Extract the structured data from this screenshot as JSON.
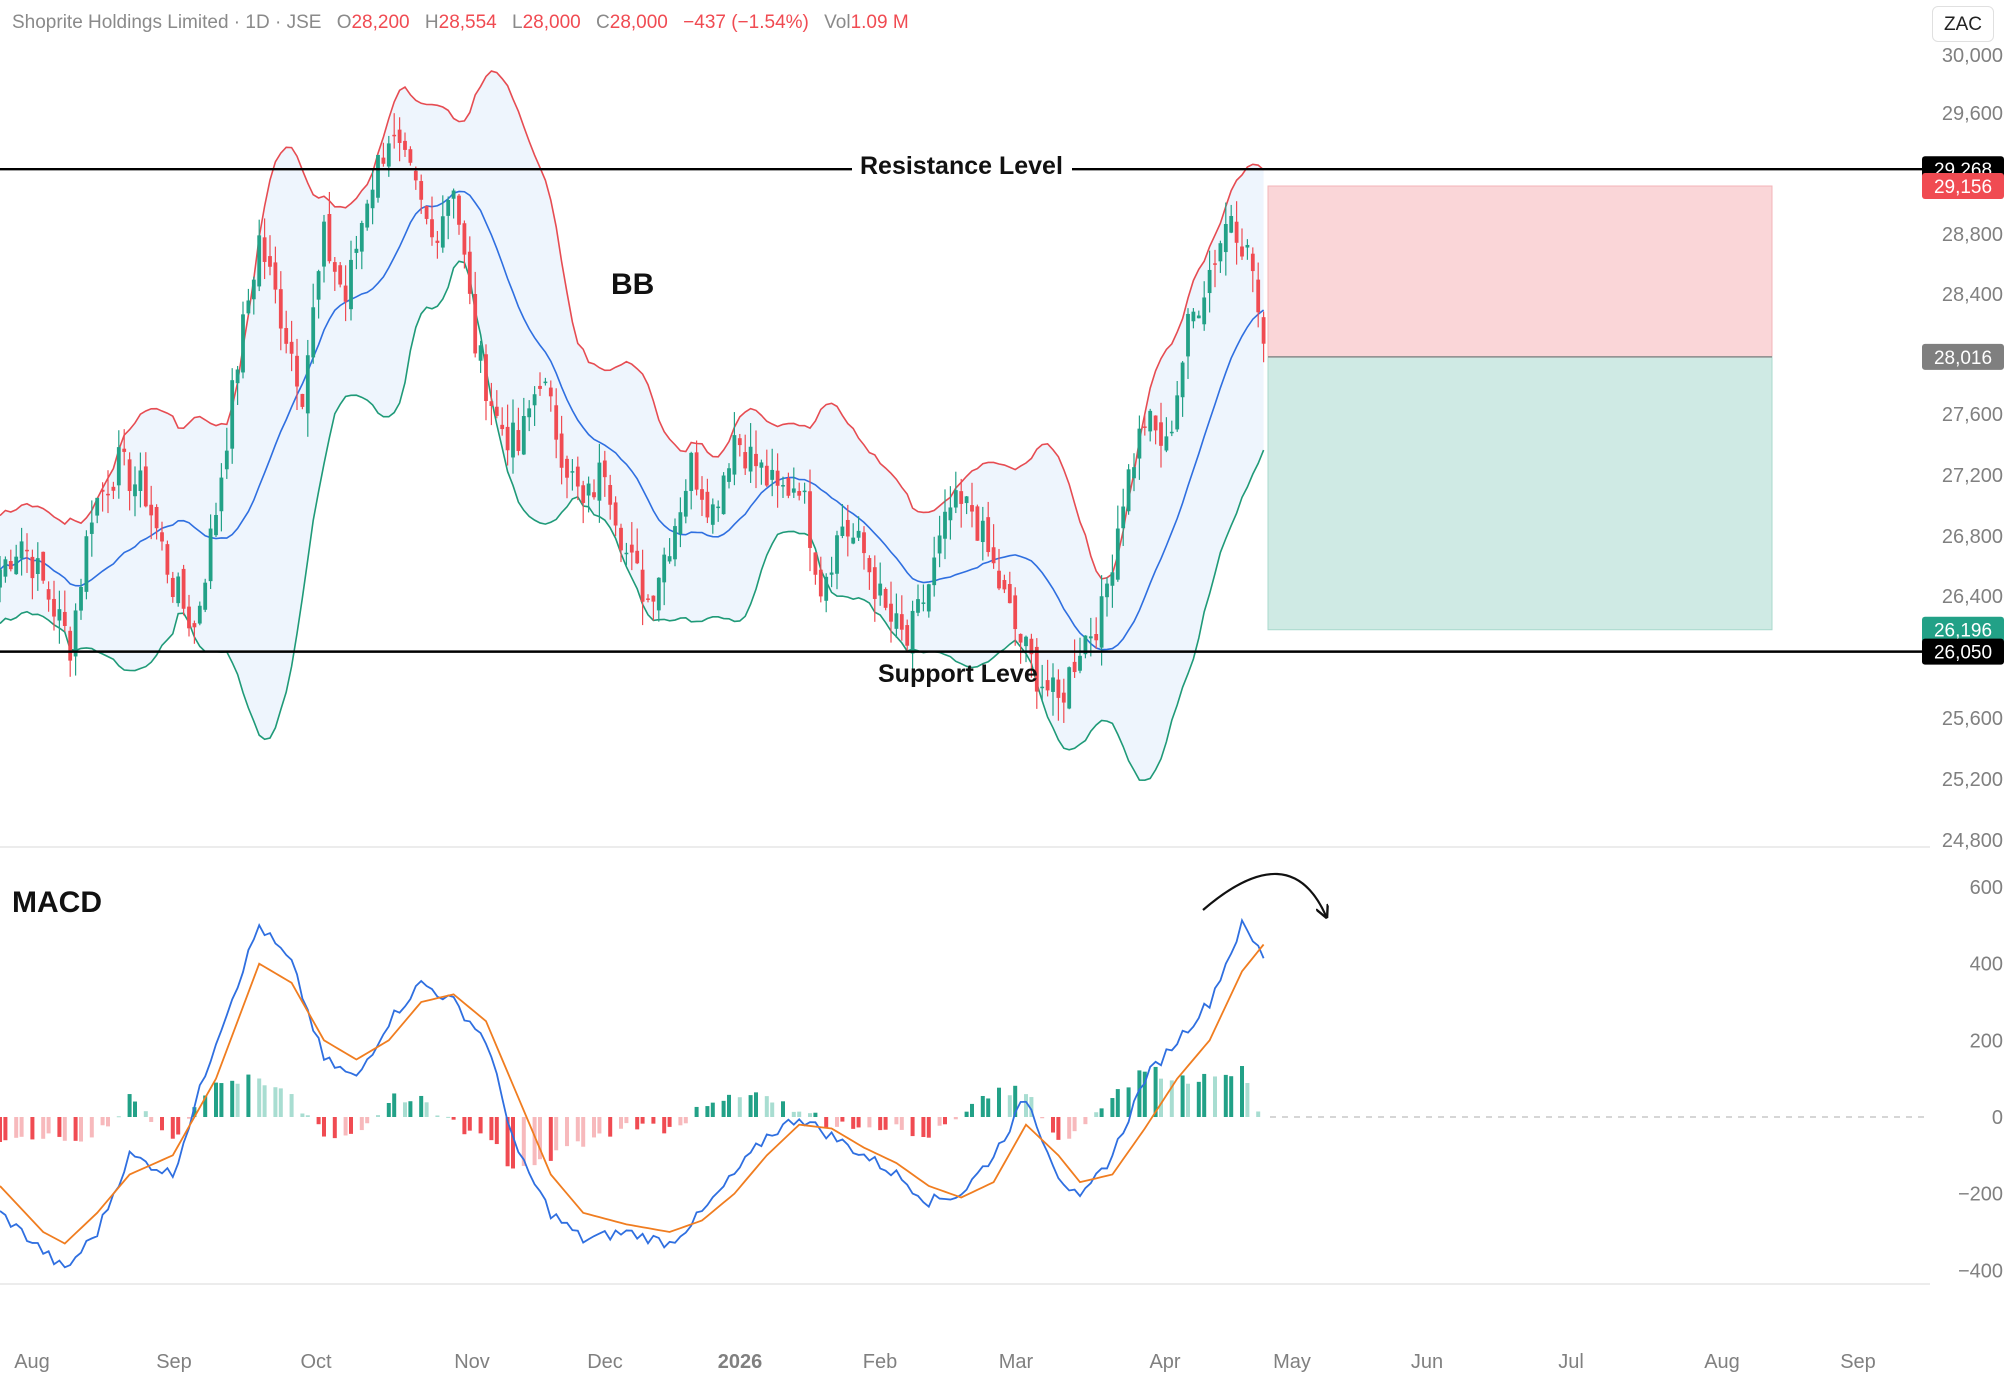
{
  "header": {
    "symbol": "Shoprite Holdings Limited · 1D · JSE",
    "open_label": "O",
    "open": "28,200",
    "high_label": "H",
    "high": "28,554",
    "low_label": "L",
    "low": "28,000",
    "close_label": "C",
    "close": "28,000",
    "change": "−437 (−1.54%)",
    "vol_label": "Vol",
    "vol": "1.09 M"
  },
  "currency": "ZAC",
  "colors": {
    "up": "#22a187",
    "down": "#f04b52",
    "bb_upper": "#e64c52",
    "bb_lower": "#1f9a78",
    "bb_basis": "#2f6fe0",
    "bb_fill": "#eef5fd",
    "macd": "#2f6fe0",
    "signal": "#f07d20"
  },
  "annotations": {
    "resistance": "Resistance Level",
    "support": "Support Leve",
    "bb": "BB",
    "macd": "MACD"
  },
  "chart_data": [
    {
      "type": "candlestick",
      "title": "",
      "price_axis": {
        "ticks": [
          "30,000",
          "29,600",
          "28,800",
          "28,400",
          "27,600",
          "27,200",
          "26,800",
          "26,400",
          "25,600",
          "25,200",
          "24,800"
        ],
        "range": [
          24780,
          30050
        ]
      },
      "time_axis": {
        "ticks": [
          "Aug",
          "Sep",
          "Oct",
          "Nov",
          "Dec",
          "2026",
          "Feb",
          "Mar",
          "Apr",
          "May",
          "Jun",
          "Jul",
          "Aug",
          "Sep"
        ]
      },
      "levels": [
        {
          "name": "resistance",
          "value": 29268,
          "label": "29,268"
        },
        {
          "name": "support",
          "value": 26050,
          "label": "26,050"
        }
      ],
      "price_tags": [
        {
          "value": 29268,
          "label": "29,268",
          "color": "#000000"
        },
        {
          "value": 29156,
          "label": "29,156",
          "color": "#f04b52"
        },
        {
          "value": 28016,
          "label": "28,016",
          "color": "#7f7f7f"
        },
        {
          "value": 26196,
          "label": "26,196",
          "color": "#22a187"
        },
        {
          "value": 26050,
          "label": "26,050",
          "color": "#000000"
        }
      ],
      "position": {
        "entry": 28016,
        "stop": 29156,
        "target": 26196
      },
      "anchors": [
        [
          0,
          26600
        ],
        [
          4,
          26800
        ],
        [
          8,
          26500
        ],
        [
          13,
          26100
        ],
        [
          17,
          27000
        ],
        [
          22,
          27300
        ],
        [
          27,
          27100
        ],
        [
          32,
          26500
        ],
        [
          36,
          26200
        ],
        [
          40,
          27000
        ],
        [
          44,
          28000
        ],
        [
          48,
          28800
        ],
        [
          52,
          28300
        ],
        [
          56,
          27800
        ],
        [
          60,
          28800
        ],
        [
          64,
          28400
        ],
        [
          68,
          29100
        ],
        [
          72,
          29500
        ],
        [
          76,
          29200
        ],
        [
          80,
          28800
        ],
        [
          84,
          29200
        ],
        [
          88,
          28100
        ],
        [
          92,
          27600
        ],
        [
          96,
          27400
        ],
        [
          100,
          27900
        ],
        [
          104,
          27400
        ],
        [
          108,
          27000
        ],
        [
          112,
          27300
        ],
        [
          116,
          26700
        ],
        [
          120,
          26400
        ],
        [
          124,
          26800
        ],
        [
          128,
          27300
        ],
        [
          132,
          27000
        ],
        [
          136,
          27500
        ],
        [
          140,
          27300
        ],
        [
          144,
          27100
        ],
        [
          148,
          27200
        ],
        [
          152,
          26500
        ],
        [
          156,
          26900
        ],
        [
          160,
          26700
        ],
        [
          164,
          26300
        ],
        [
          168,
          26100
        ],
        [
          172,
          26500
        ],
        [
          176,
          27000
        ],
        [
          180,
          27000
        ],
        [
          184,
          26600
        ],
        [
          188,
          26200
        ],
        [
          192,
          25900
        ],
        [
          196,
          25700
        ],
        [
          200,
          26100
        ],
        [
          204,
          26300
        ],
        [
          208,
          27100
        ],
        [
          212,
          27600
        ],
        [
          216,
          27400
        ],
        [
          220,
          28200
        ],
        [
          224,
          28600
        ],
        [
          228,
          29000
        ],
        [
          232,
          28600
        ],
        [
          234,
          28000
        ]
      ]
    },
    {
      "type": "bar",
      "title": "MACD",
      "value_axis": {
        "ticks": [
          "600",
          "400",
          "200",
          "0",
          "−200",
          "−400"
        ],
        "range": [
          -450,
          630
        ]
      },
      "macd_anchors": [
        [
          0,
          -250
        ],
        [
          8,
          -350
        ],
        [
          12,
          -400
        ],
        [
          18,
          -300
        ],
        [
          24,
          -100
        ],
        [
          32,
          -150
        ],
        [
          40,
          200
        ],
        [
          48,
          500
        ],
        [
          54,
          400
        ],
        [
          60,
          150
        ],
        [
          66,
          100
        ],
        [
          72,
          250
        ],
        [
          78,
          350
        ],
        [
          84,
          300
        ],
        [
          90,
          200
        ],
        [
          96,
          -100
        ],
        [
          102,
          -250
        ],
        [
          108,
          -320
        ],
        [
          116,
          -300
        ],
        [
          124,
          -330
        ],
        [
          130,
          -250
        ],
        [
          136,
          -150
        ],
        [
          142,
          -50
        ],
        [
          148,
          0
        ],
        [
          154,
          -50
        ],
        [
          160,
          -100
        ],
        [
          166,
          -150
        ],
        [
          172,
          -220
        ],
        [
          178,
          -200
        ],
        [
          184,
          -100
        ],
        [
          190,
          50
        ],
        [
          196,
          -150
        ],
        [
          200,
          -220
        ],
        [
          206,
          -100
        ],
        [
          212,
          100
        ],
        [
          218,
          200
        ],
        [
          224,
          300
        ],
        [
          230,
          500
        ],
        [
          234,
          420
        ]
      ],
      "signal_anchors": [
        [
          0,
          -180
        ],
        [
          8,
          -300
        ],
        [
          12,
          -330
        ],
        [
          18,
          -250
        ],
        [
          24,
          -150
        ],
        [
          32,
          -100
        ],
        [
          40,
          100
        ],
        [
          48,
          400
        ],
        [
          54,
          350
        ],
        [
          60,
          200
        ],
        [
          66,
          150
        ],
        [
          72,
          200
        ],
        [
          78,
          300
        ],
        [
          84,
          320
        ],
        [
          90,
          250
        ],
        [
          96,
          50
        ],
        [
          102,
          -150
        ],
        [
          108,
          -250
        ],
        [
          116,
          -280
        ],
        [
          124,
          -300
        ],
        [
          130,
          -270
        ],
        [
          136,
          -200
        ],
        [
          142,
          -100
        ],
        [
          148,
          -20
        ],
        [
          154,
          -30
        ],
        [
          160,
          -80
        ],
        [
          166,
          -120
        ],
        [
          172,
          -180
        ],
        [
          178,
          -210
        ],
        [
          184,
          -170
        ],
        [
          190,
          -20
        ],
        [
          196,
          -100
        ],
        [
          200,
          -170
        ],
        [
          206,
          -150
        ],
        [
          212,
          -30
        ],
        [
          218,
          100
        ],
        [
          224,
          200
        ],
        [
          230,
          380
        ],
        [
          234,
          450
        ]
      ]
    }
  ]
}
